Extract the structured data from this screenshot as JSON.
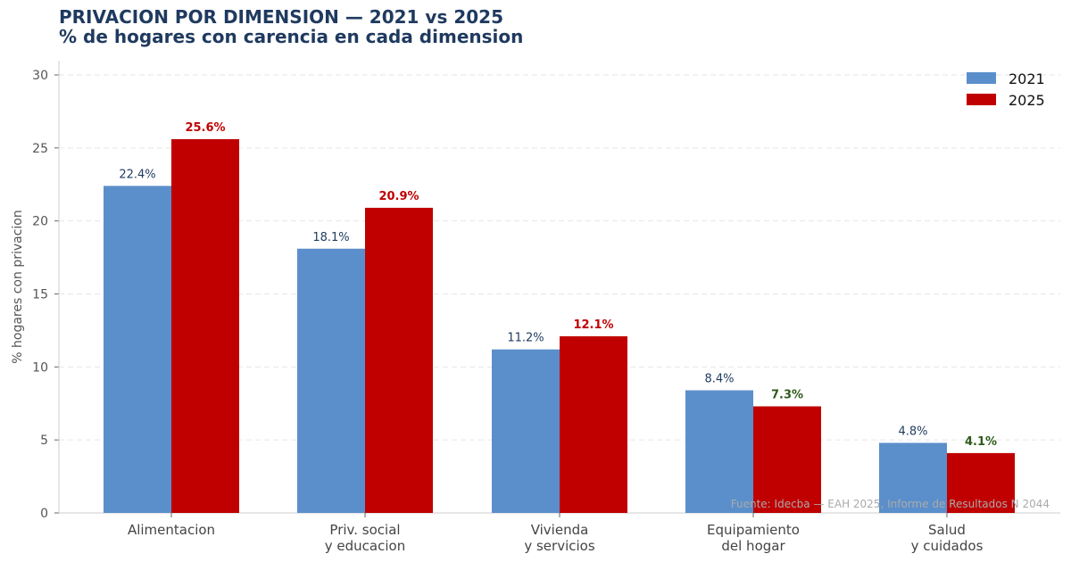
{
  "chart_data": {
    "type": "bar",
    "title": "PRIVACION POR DIMENSION — 2021 vs 2025",
    "subtitle": "% de hogares con carencia en cada dimension",
    "ylabel": "% hogares con privacion",
    "xlabel": "",
    "ylim": [
      0,
      31
    ],
    "yticks": [
      0,
      5,
      10,
      15,
      20,
      25,
      30
    ],
    "grid": "horizontal dashed",
    "legend_position": "top-right",
    "categories": [
      [
        "Alimentacion"
      ],
      [
        "Priv. social",
        "y educacion"
      ],
      [
        "Vivienda",
        "y servicios"
      ],
      [
        "Equipamiento",
        "del hogar"
      ],
      [
        "Salud",
        "y cuidados"
      ]
    ],
    "series": [
      {
        "name": "2021",
        "color": "#5b8fcb",
        "values": [
          22.4,
          18.1,
          11.2,
          8.4,
          4.8
        ],
        "labels": [
          "22.4%",
          "18.1%",
          "11.2%",
          "8.4%",
          "4.8%"
        ],
        "label_colors": [
          "#1f3a5f",
          "#1f3a5f",
          "#1f3a5f",
          "#1f3a5f",
          "#1f3a5f"
        ]
      },
      {
        "name": "2025",
        "color": "#c00000",
        "values": [
          25.6,
          20.9,
          12.1,
          7.3,
          4.1
        ],
        "labels": [
          "25.6%",
          "20.9%",
          "12.1%",
          "7.3%",
          "4.1%"
        ],
        "label_colors": [
          "#c00000",
          "#c00000",
          "#c00000",
          "#2e5a1a",
          "#2e5a1a"
        ]
      }
    ],
    "source": "Fuente: Idecba — EAH 2025, Informe de Resultados N 2044"
  }
}
